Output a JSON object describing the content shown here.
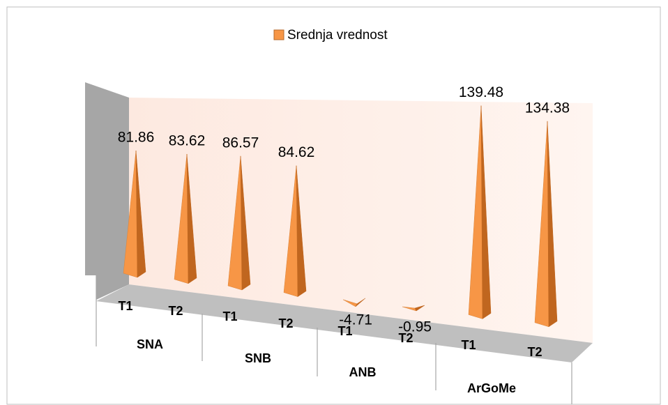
{
  "chart_data": {
    "type": "pyramid3d",
    "categories": [
      "T1",
      "T2",
      "T1",
      "T2",
      "T1",
      "T2",
      "T1",
      "T2"
    ],
    "groups": [
      "SNA",
      "SNB",
      "ANB",
      "ArGoMe"
    ],
    "series": [
      {
        "name": "Srednja vrednost",
        "color": "#f79646",
        "values": [
          81.86,
          83.62,
          86.57,
          84.62,
          -4.71,
          -0.95,
          139.48,
          134.38
        ]
      }
    ],
    "legend": "top"
  }
}
